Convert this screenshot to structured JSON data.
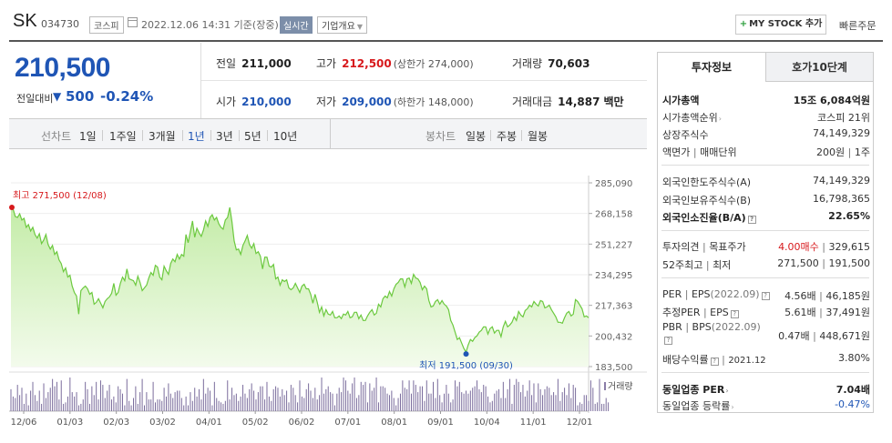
{
  "header": {
    "name": "SK",
    "code": "034730",
    "market": "코스피",
    "datetime": "2022.12.06 14:31 기준(장중)",
    "realtime_badge": "실시간",
    "company_info": "기업개요",
    "mystock_button": "MY STOCK 추가",
    "quick_order": "빠른주문"
  },
  "summary": {
    "price": "210,500",
    "change_label": "전일대비",
    "change_value": "500",
    "change_pct": "-0.24%",
    "prev_close_label": "전일",
    "prev_close": "211,000",
    "high_label": "고가",
    "high": "212,500",
    "upper_limit": "(상한가 274,000)",
    "volume_label": "거래량",
    "volume": "70,603",
    "open_label": "시가",
    "open": "210,000",
    "low_label": "저가",
    "low": "209,000",
    "lower_limit": "(하한가 148,000)",
    "amount_label": "거래대금",
    "amount": "14,887",
    "amount_unit": "백만"
  },
  "period_tabs": {
    "line_title": "선차트",
    "line_items": [
      "1일",
      "1주일",
      "3개월",
      "1년",
      "3년",
      "5년",
      "10년"
    ],
    "active": "1년",
    "candle_title": "봉차트",
    "candle_items": [
      "일봉",
      "주봉",
      "월봉"
    ]
  },
  "chart_data": {
    "type": "area",
    "ylim": [
      183500,
      285090
    ],
    "y_ticks": [
      "285,090",
      "268,158",
      "251,227",
      "234,295",
      "217,363",
      "200,432",
      "183,500"
    ],
    "x_tick_labels": [
      "12/06",
      "01/03",
      "02/03",
      "03/02",
      "04/01",
      "05/02",
      "06/02",
      "07/01",
      "08/01",
      "09/01",
      "10/04",
      "11/01",
      "12/01"
    ],
    "max_annotation": "최고 271,500 (12/08)",
    "min_annotation": "최저 191,500 (09/30)",
    "volume_label": "거래량",
    "colors": {
      "line": "#6cc93f",
      "fill_top": "#c4eca8",
      "fill_bottom": "#f3fbec",
      "max_marker": "#d7191c",
      "min_marker": "#1f55b5",
      "volume": "#7a6c9c"
    },
    "series": [
      {
        "values": [
          271500,
          270500,
          266500,
          266000,
          268000,
          264500,
          265500,
          260500,
          262000,
          258500,
          260500,
          256500,
          254500,
          257000,
          251500,
          253500,
          256500,
          251000,
          248500,
          250500,
          245500,
          247000,
          242500,
          240500,
          236000,
          238000,
          233000,
          234000,
          228000,
          224500,
          222500,
          212500,
          225500,
          227000,
          228000,
          226500,
          223500,
          224500,
          218000,
          219000,
          221000,
          218500,
          216000,
          219500,
          221000,
          222000,
          224000,
          229500,
          223000,
          224500,
          229500,
          233000,
          231000,
          237500,
          232000,
          231500,
          231000,
          228500,
          233500,
          230000,
          225500,
          227000,
          228500,
          232500,
          235500,
          234000,
          239500,
          238500,
          233000,
          231500,
          239000,
          236500,
          234500,
          240500,
          243000,
          241500,
          245500,
          243000,
          245500,
          244500,
          256500,
          252000,
          258000,
          264000,
          255000,
          260000,
          257500,
          255500,
          259000,
          264000,
          261000,
          266000,
          267500,
          264500,
          266000,
          262500,
          260500,
          259500,
          264500,
          266000,
          271500,
          263500,
          253000,
          248000,
          248500,
          245500,
          250500,
          253000,
          256000,
          251000,
          249000,
          251500,
          246000,
          247000,
          244500,
          237500,
          244000,
          244000,
          239000,
          238500,
          240000,
          232000,
          233000,
          228500,
          231500,
          230500,
          231500,
          227000,
          226000,
          227000,
          229500,
          227000,
          224500,
          228000,
          229000,
          226500,
          226500,
          223500,
          218500,
          223500,
          219000,
          213500,
          216500,
          211500,
          215000,
          212500,
          212000,
          214000,
          210500,
          210500,
          211500,
          210000,
          212500,
          212000,
          214000,
          210500,
          211000,
          213500,
          213500,
          210000,
          212000,
          209000,
          209000,
          211500,
          213500,
          215000,
          212000,
          213000,
          218000,
          216500,
          221000,
          222500,
          221500,
          225000,
          222500,
          226500,
          229000,
          230000,
          232000,
          232000,
          227500,
          232000,
          232500,
          229500,
          234500,
          232500,
          232000,
          230000,
          226000,
          228000,
          226500,
          220000,
          216500,
          217000,
          219500,
          220500,
          218000,
          220000,
          218000,
          217000,
          215000,
          209000,
          206500,
          202500,
          198500,
          199500,
          196500,
          193500,
          191500,
          195500,
          198500,
          197500,
          199500,
          200500,
          202500,
          203500,
          205500,
          205500,
          201500,
          204500,
          205500,
          202000,
          203500,
          203500,
          200000,
          205500,
          208500,
          205500,
          206500,
          208000,
          211000,
          209000,
          214000,
          212000,
          211000,
          214500,
          215500,
          217500,
          216500,
          219500,
          218000,
          217000,
          220000,
          219500,
          216000,
          216500,
          217500,
          215000,
          213000,
          211000,
          208000,
          208000,
          207500,
          210500,
          213000,
          214000,
          211500,
          212500,
          220500,
          219500,
          217500,
          215500,
          211000,
          211500,
          210500
        ]
      },
      {
        "name": "거래량",
        "values": [
          15,
          10,
          9,
          18,
          11,
          16,
          5,
          12,
          4,
          14,
          20,
          11,
          7,
          14,
          5,
          19,
          9,
          13,
          16,
          22,
          17,
          20,
          8,
          21,
          5,
          6,
          10,
          23,
          13,
          10,
          13,
          4,
          5,
          8,
          20,
          15,
          5,
          17,
          11,
          20,
          8,
          21,
          18,
          9,
          14,
          18,
          8,
          10,
          6,
          17,
          15,
          12,
          4,
          22,
          7,
          4,
          9,
          17,
          5,
          13,
          22,
          4,
          13,
          8,
          8,
          20,
          6,
          8,
          8,
          7,
          16,
          10,
          19,
          12,
          9,
          13,
          14,
          14,
          9,
          4,
          10,
          4,
          13,
          7,
          16,
          10,
          15,
          8,
          22,
          12,
          16,
          14,
          4,
          20,
          9,
          7,
          6,
          5,
          7,
          21,
          8,
          16,
          11,
          12,
          7,
          10,
          18,
          12,
          9,
          15,
          19,
          14,
          8,
          13,
          17,
          17,
          8,
          20,
          10,
          7,
          15,
          17,
          16,
          10,
          15,
          11,
          14,
          6,
          18,
          16,
          11,
          6,
          21,
          10,
          9,
          15,
          19,
          14,
          9,
          16,
          8,
          11,
          23,
          12,
          15,
          17,
          13,
          12,
          4,
          12,
          16,
          13,
          23,
          21,
          14,
          12,
          19,
          23,
          9,
          11,
          20,
          18,
          20,
          6,
          19,
          14,
          16,
          23,
          6,
          17,
          17,
          16,
          12,
          11,
          14,
          9,
          4,
          9,
          12,
          21,
          16,
          15,
          21,
          12,
          21,
          18,
          13,
          17,
          17,
          7,
          21,
          12,
          12,
          20,
          9,
          22,
          11,
          6,
          12,
          18,
          12,
          6,
          8,
          21,
          17,
          20,
          13,
          12,
          14,
          12,
          14,
          16,
          17,
          21,
          15,
          13,
          18,
          17,
          10,
          6,
          7,
          12,
          14,
          15,
          9,
          20,
          9,
          15,
          22,
          5,
          18,
          22,
          20,
          13,
          18,
          10,
          14,
          21,
          11,
          19,
          6,
          19,
          15,
          11,
          15,
          17,
          16,
          11,
          13,
          11,
          22,
          7,
          13,
          16,
          11,
          19,
          9,
          18,
          16,
          4,
          6,
          5,
          11,
          11,
          7,
          21,
          16,
          5,
          6,
          22,
          5,
          5,
          9,
          6
        ]
      }
    ]
  },
  "investment": {
    "tab_info": "투자정보",
    "tab_orderbook": "호가10단계",
    "market_cap_label": "시가총액",
    "market_cap": "15조 6,084억원",
    "market_cap_rank_label": "시가총액순위",
    "market_cap_rank": "코스피 21위",
    "listed_shares_label": "상장주식수",
    "listed_shares": "74,149,329",
    "par_label": "액면가",
    "trade_unit_label": "매매단위",
    "par_value": "200원",
    "trade_unit": "1주",
    "foreign_limit_label": "외국인한도주식수(A)",
    "foreign_limit": "74,149,329",
    "foreign_hold_label": "외국인보유주식수(B)",
    "foreign_hold": "16,798,365",
    "foreign_ratio_label": "외국인소진율(B/A)",
    "foreign_ratio": "22.65%",
    "opinion_label": "투자의견",
    "target_label": "목표주가",
    "opinion": "4.00매수",
    "target": "329,615",
    "week52_label": "52주최고",
    "week52_low_label": "최저",
    "week52_high": "271,500",
    "week52_low": "191,500",
    "per_label": "PER",
    "eps_label": "EPS",
    "eps_period": "(2022.09)",
    "per": "4.56배",
    "eps": "46,185원",
    "est_per_label": "추정PER",
    "est_eps_label": "EPS",
    "est_per": "5.61배",
    "est_eps": "37,491원",
    "pbr_label": "PBR",
    "bps_label": "BPS",
    "bps_period": "(2022.09)",
    "pbr": "0.47배",
    "bps": "448,671원",
    "div_label": "배당수익률",
    "div_period": "2021.12",
    "div": "3.80%",
    "sector_per_label": "동일업종 PER",
    "sector_per": "7.04배",
    "sector_rate_label": "동일업종 등락률",
    "sector_rate": "-0.47%"
  }
}
